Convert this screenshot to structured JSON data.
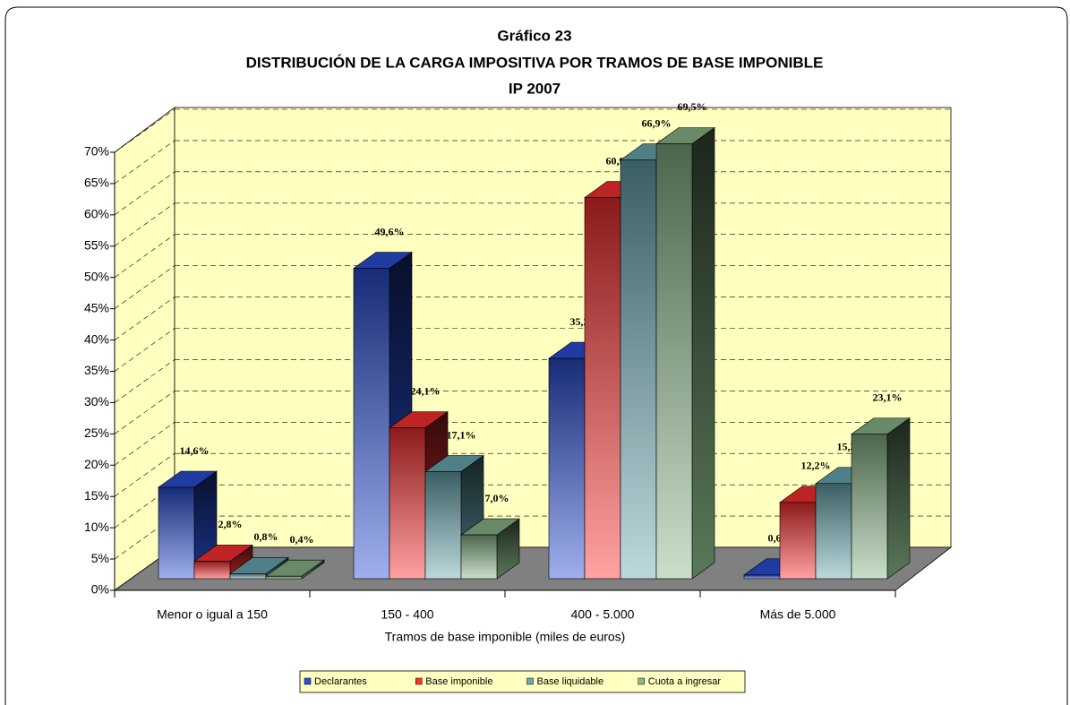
{
  "chart_data": {
    "type": "bar3d",
    "title": "Gráfico 23",
    "subtitle": "DISTRIBUCIÓN DE LA CARGA IMPOSITIVA POR TRAMOS DE BASE IMPONIBLE",
    "subtitle2": "IP 2007",
    "x_label": "Tramos de base imponible (miles de euros)",
    "categories": [
      "Menor o igual a 150",
      "150 - 400",
      "400 - 5.000",
      "Más de 5.000"
    ],
    "series": [
      {
        "name": "Declarantes",
        "color": "#2a4ed8",
        "values": [
          14.6,
          49.6,
          35.2,
          0.6
        ],
        "value_labels": [
          "14,6%",
          "49,6%",
          "35,2%",
          "0,6%"
        ]
      },
      {
        "name": "Base imponible",
        "color": "#ff3030",
        "values": [
          2.8,
          24.1,
          60.9,
          12.2
        ],
        "value_labels": [
          "2,8%",
          "24,1%",
          "60,9%",
          "12,2%"
        ]
      },
      {
        "name": "Base liquidable",
        "color": "#6aaab4",
        "values": [
          0.8,
          17.1,
          66.9,
          15.2
        ],
        "value_labels": [
          "0,8%",
          "17,1%",
          "66,9%",
          "15,2%"
        ]
      },
      {
        "name": "Cuota a ingresar",
        "color": "#8ab88a",
        "values": [
          0.4,
          7.0,
          69.5,
          23.1
        ],
        "value_labels": [
          "0,4%",
          "7,0%",
          "69,5%",
          "23,1%"
        ]
      }
    ],
    "ylim": [
      0,
      70
    ],
    "yticks": [
      {
        "value": 0,
        "label": "0%"
      },
      {
        "value": 5,
        "label": "5%"
      },
      {
        "value": 10,
        "label": "10%"
      },
      {
        "value": 15,
        "label": "15%"
      },
      {
        "value": 20,
        "label": "20%"
      },
      {
        "value": 25,
        "label": "25%"
      },
      {
        "value": 30,
        "label": "30%"
      },
      {
        "value": 35,
        "label": "35%"
      },
      {
        "value": 40,
        "label": "40%"
      },
      {
        "value": 45,
        "label": "45%"
      },
      {
        "value": 50,
        "label": "50%"
      },
      {
        "value": 55,
        "label": "55%"
      },
      {
        "value": 60,
        "label": "60%"
      },
      {
        "value": 65,
        "label": "65%"
      },
      {
        "value": 70,
        "label": "70%"
      }
    ],
    "grid": true,
    "legend": "bottom"
  }
}
